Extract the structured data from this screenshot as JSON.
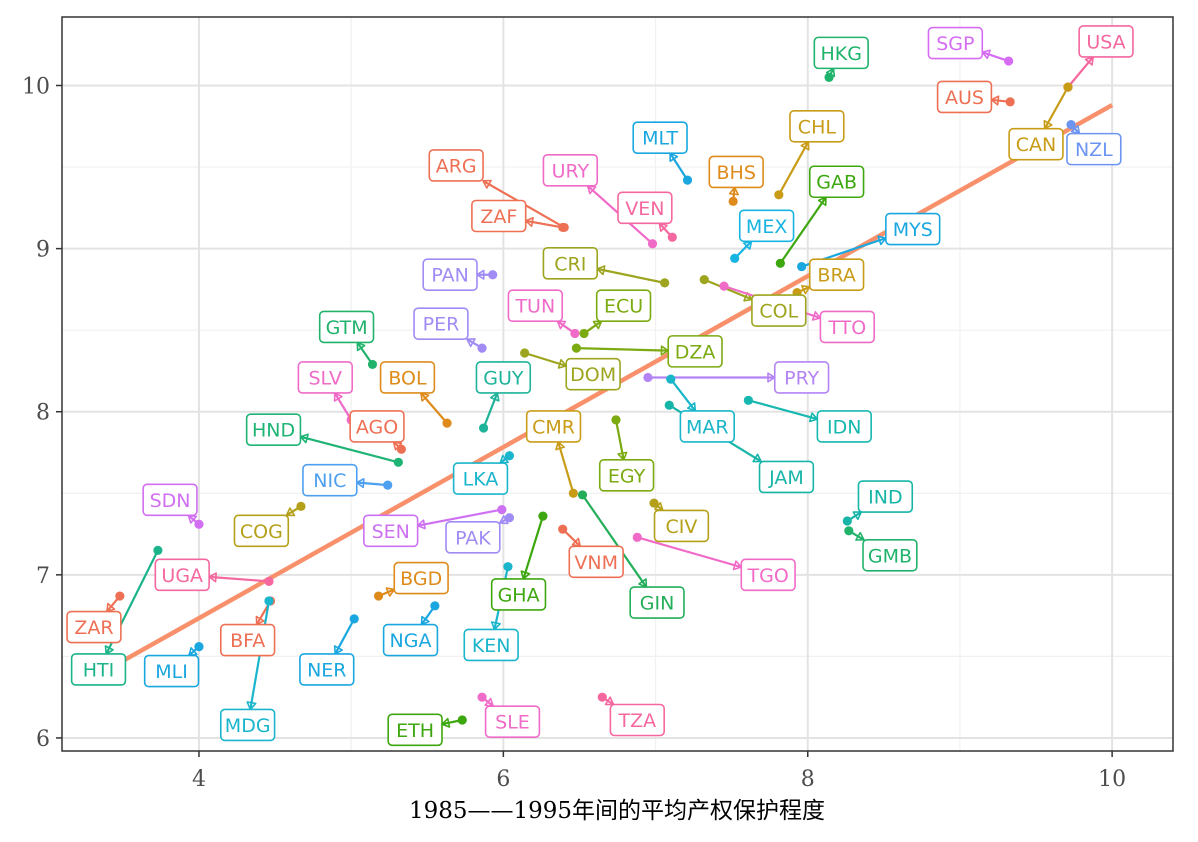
{
  "chart_data": {
    "type": "scatter",
    "title": "",
    "xlabel": "1985——1995年间的平均产权保护程度",
    "ylabel": "",
    "xlim": [
      3.1,
      10.4
    ],
    "ylim": [
      5.92,
      10.42
    ],
    "x_ticks": [
      "4",
      "6",
      "8",
      "10"
    ],
    "x_tick_values": [
      4,
      6,
      8,
      10
    ],
    "y_ticks": [
      "6",
      "7",
      "8",
      "9",
      "10"
    ],
    "y_tick_values": [
      6,
      7,
      8,
      9,
      10
    ],
    "grid": true,
    "legend": "none",
    "fit_line": {
      "color": "#F8916B",
      "from": [
        3.4,
        6.42
      ],
      "to": [
        10.0,
        9.88
      ]
    },
    "points": [
      {
        "code": "HKG",
        "x": 8.14,
        "y": 10.05,
        "lx": 8.22,
        "ly": 10.2,
        "color": "#1FB46B"
      },
      {
        "code": "SGP",
        "x": 9.32,
        "y": 10.15,
        "lx": 8.97,
        "ly": 10.26,
        "color": "#D76CF4"
      },
      {
        "code": "USA",
        "x": 9.71,
        "y": 9.99,
        "lx": 9.96,
        "ly": 10.27,
        "color": "#F5679F"
      },
      {
        "code": "AUS",
        "x": 9.33,
        "y": 9.9,
        "lx": 9.03,
        "ly": 9.93,
        "color": "#EE7054"
      },
      {
        "code": "CAN",
        "x": 9.71,
        "y": 9.99,
        "lx": 9.5,
        "ly": 9.64,
        "color": "#C99C17"
      },
      {
        "code": "NZL",
        "x": 9.73,
        "y": 9.76,
        "lx": 9.88,
        "ly": 9.61,
        "color": "#6C95F2"
      },
      {
        "code": "CHL",
        "x": 7.81,
        "y": 9.33,
        "lx": 8.06,
        "ly": 9.75,
        "color": "#C99C17"
      },
      {
        "code": "MLT",
        "x": 7.21,
        "y": 9.42,
        "lx": 7.03,
        "ly": 9.68,
        "color": "#1AA7DF"
      },
      {
        "code": "BHS",
        "x": 7.51,
        "y": 9.29,
        "lx": 7.53,
        "ly": 9.47,
        "color": "#DE8B1C"
      },
      {
        "code": "GAB",
        "x": 7.82,
        "y": 8.91,
        "lx": 8.19,
        "ly": 9.41,
        "color": "#3DA70F"
      },
      {
        "code": "ARG",
        "x": 6.4,
        "y": 9.13,
        "lx": 5.69,
        "ly": 9.51,
        "color": "#EE7054"
      },
      {
        "code": "URY",
        "x": 6.98,
        "y": 9.03,
        "lx": 6.44,
        "ly": 9.48,
        "color": "#F06BC8"
      },
      {
        "code": "VEN",
        "x": 7.11,
        "y": 9.07,
        "lx": 6.93,
        "ly": 9.25,
        "color": "#F5679F"
      },
      {
        "code": "ZAF",
        "x": 6.39,
        "y": 9.13,
        "lx": 5.97,
        "ly": 9.2,
        "color": "#EE7054"
      },
      {
        "code": "MEX",
        "x": 7.52,
        "y": 8.94,
        "lx": 7.73,
        "ly": 9.14,
        "color": "#18B4E1"
      },
      {
        "code": "MYS",
        "x": 7.96,
        "y": 8.89,
        "lx": 8.69,
        "ly": 9.12,
        "color": "#1AA7DF"
      },
      {
        "code": "CRI",
        "x": 7.06,
        "y": 8.79,
        "lx": 6.44,
        "ly": 8.91,
        "color": "#9DA51E"
      },
      {
        "code": "PAN",
        "x": 5.93,
        "y": 8.84,
        "lx": 5.65,
        "ly": 8.84,
        "color": "#A18BF5"
      },
      {
        "code": "BRA",
        "x": 7.93,
        "y": 8.73,
        "lx": 8.19,
        "ly": 8.84,
        "color": "#C99C17"
      },
      {
        "code": "TUN",
        "x": 6.47,
        "y": 8.48,
        "lx": 6.21,
        "ly": 8.65,
        "color": "#F06BC8"
      },
      {
        "code": "ECU",
        "x": 6.53,
        "y": 8.48,
        "lx": 6.79,
        "ly": 8.65,
        "color": "#7BAA11"
      },
      {
        "code": "COL",
        "x": 7.32,
        "y": 8.81,
        "lx": 7.81,
        "ly": 8.62,
        "color": "#9DA51E"
      },
      {
        "code": "TTO",
        "x": 7.45,
        "y": 8.77,
        "lx": 8.26,
        "ly": 8.52,
        "color": "#F06BC8"
      },
      {
        "code": "GTM",
        "x": 5.14,
        "y": 8.29,
        "lx": 4.97,
        "ly": 8.52,
        "color": "#21B36C"
      },
      {
        "code": "PER",
        "x": 5.86,
        "y": 8.39,
        "lx": 5.59,
        "ly": 8.54,
        "color": "#A18BF5"
      },
      {
        "code": "DZA",
        "x": 6.48,
        "y": 8.39,
        "lx": 7.26,
        "ly": 8.37,
        "color": "#7BAA11"
      },
      {
        "code": "SLV",
        "x": 5.0,
        "y": 7.95,
        "lx": 4.83,
        "ly": 8.21,
        "color": "#F06BC8"
      },
      {
        "code": "BOL",
        "x": 5.63,
        "y": 7.93,
        "lx": 5.37,
        "ly": 8.21,
        "color": "#DE8B1C"
      },
      {
        "code": "GUY",
        "x": 5.87,
        "y": 7.9,
        "lx": 6.0,
        "ly": 8.21,
        "color": "#1FB39A"
      },
      {
        "code": "DOM",
        "x": 6.14,
        "y": 8.36,
        "lx": 6.59,
        "ly": 8.23,
        "color": "#9DA51E"
      },
      {
        "code": "PRY",
        "x": 6.95,
        "y": 8.21,
        "lx": 7.96,
        "ly": 8.21,
        "color": "#B584F4"
      },
      {
        "code": "MAR",
        "x": 7.1,
        "y": 8.2,
        "lx": 7.34,
        "ly": 7.91,
        "color": "#1AB5C8"
      },
      {
        "code": "IDN",
        "x": 7.61,
        "y": 8.07,
        "lx": 8.24,
        "ly": 7.91,
        "color": "#17B8AF"
      },
      {
        "code": "AGO",
        "x": 5.33,
        "y": 7.77,
        "lx": 5.17,
        "ly": 7.91,
        "color": "#EE7054"
      },
      {
        "code": "HND",
        "x": 5.31,
        "y": 7.69,
        "lx": 4.49,
        "ly": 7.89,
        "color": "#1FB475"
      },
      {
        "code": "CMR",
        "x": 6.46,
        "y": 7.5,
        "lx": 6.33,
        "ly": 7.91,
        "color": "#C99C17"
      },
      {
        "code": "LKA",
        "x": 6.04,
        "y": 7.73,
        "lx": 5.85,
        "ly": 7.59,
        "color": "#1BB5CC"
      },
      {
        "code": "EGY",
        "x": 6.74,
        "y": 7.95,
        "lx": 6.81,
        "ly": 7.61,
        "color": "#7BAA11"
      },
      {
        "code": "JAM",
        "x": 7.09,
        "y": 8.04,
        "lx": 7.86,
        "ly": 7.6,
        "color": "#17B5A8"
      },
      {
        "code": "NIC",
        "x": 5.24,
        "y": 7.55,
        "lx": 4.86,
        "ly": 7.58,
        "color": "#4DA0F0"
      },
      {
        "code": "SDN",
        "x": 4.0,
        "y": 7.31,
        "lx": 3.81,
        "ly": 7.46,
        "color": "#D26EF2"
      },
      {
        "code": "COG",
        "x": 4.67,
        "y": 7.42,
        "lx": 4.41,
        "ly": 7.27,
        "color": "#B5A019"
      },
      {
        "code": "SEN",
        "x": 5.99,
        "y": 7.4,
        "lx": 5.26,
        "ly": 7.27,
        "color": "#CE70F2"
      },
      {
        "code": "PAK",
        "x": 6.04,
        "y": 7.35,
        "lx": 5.8,
        "ly": 7.23,
        "color": "#A18BF5"
      },
      {
        "code": "CIV",
        "x": 6.99,
        "y": 7.44,
        "lx": 7.17,
        "ly": 7.3,
        "color": "#B5A019"
      },
      {
        "code": "IND",
        "x": 8.26,
        "y": 7.33,
        "lx": 8.51,
        "ly": 7.48,
        "color": "#17B5A8"
      },
      {
        "code": "GMB",
        "x": 8.27,
        "y": 7.27,
        "lx": 8.54,
        "ly": 7.12,
        "color": "#21B36C"
      },
      {
        "code": "VNM",
        "x": 6.39,
        "y": 7.28,
        "lx": 6.61,
        "ly": 7.08,
        "color": "#EE7054"
      },
      {
        "code": "GIN",
        "x": 6.52,
        "y": 7.49,
        "lx": 7.01,
        "ly": 6.83,
        "color": "#24AE5A"
      },
      {
        "code": "TGO",
        "x": 6.88,
        "y": 7.23,
        "lx": 7.74,
        "ly": 7.0,
        "color": "#F06BC8"
      },
      {
        "code": "GHA",
        "x": 6.26,
        "y": 7.36,
        "lx": 6.1,
        "ly": 6.88,
        "color": "#3DA70F"
      },
      {
        "code": "UGA",
        "x": 4.46,
        "y": 6.96,
        "lx": 3.89,
        "ly": 7.0,
        "color": "#F5679F"
      },
      {
        "code": "BGD",
        "x": 5.18,
        "y": 6.87,
        "lx": 5.46,
        "ly": 6.98,
        "color": "#DE8B1C"
      },
      {
        "code": "ZAR",
        "x": 3.48,
        "y": 6.87,
        "lx": 3.31,
        "ly": 6.68,
        "color": "#EE7054"
      },
      {
        "code": "BFA",
        "x": 4.47,
        "y": 6.84,
        "lx": 4.32,
        "ly": 6.6,
        "color": "#EE7054"
      },
      {
        "code": "NGA",
        "x": 5.55,
        "y": 6.81,
        "lx": 5.39,
        "ly": 6.6,
        "color": "#1AA7DF"
      },
      {
        "code": "KEN",
        "x": 6.03,
        "y": 7.05,
        "lx": 5.92,
        "ly": 6.57,
        "color": "#1BB5CC"
      },
      {
        "code": "HTI",
        "x": 3.73,
        "y": 7.15,
        "lx": 3.34,
        "ly": 6.42,
        "color": "#1BB38A"
      },
      {
        "code": "MLI",
        "x": 4.0,
        "y": 6.56,
        "lx": 3.82,
        "ly": 6.41,
        "color": "#1AA7DF"
      },
      {
        "code": "NER",
        "x": 5.02,
        "y": 6.73,
        "lx": 4.84,
        "ly": 6.42,
        "color": "#1AA7DF"
      },
      {
        "code": "MDG",
        "x": 4.46,
        "y": 6.84,
        "lx": 4.32,
        "ly": 6.08,
        "color": "#1BB5CC"
      },
      {
        "code": "SLE",
        "x": 5.86,
        "y": 6.25,
        "lx": 6.06,
        "ly": 6.1,
        "color": "#F06BC8"
      },
      {
        "code": "TZA",
        "x": 6.65,
        "y": 6.25,
        "lx": 6.88,
        "ly": 6.11,
        "color": "#F5679F"
      },
      {
        "code": "ETH",
        "x": 5.73,
        "y": 6.11,
        "lx": 5.42,
        "ly": 6.05,
        "color": "#3DA70F"
      }
    ]
  }
}
